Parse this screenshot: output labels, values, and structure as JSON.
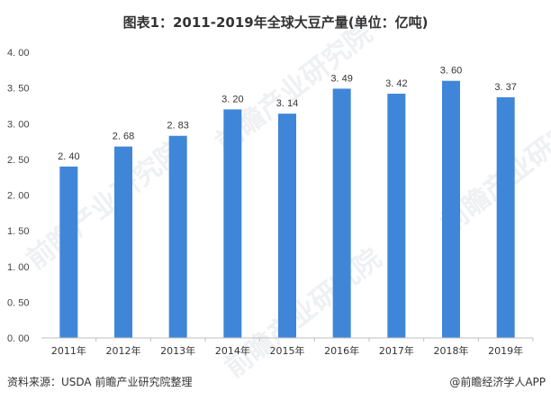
{
  "title": "图表1：2011-2019年全球大豆产量(单位：亿吨)",
  "source": "资料来源：USDA 前瞻产业研究院整理",
  "credit": "@前瞻经济学人APP",
  "watermark": "前瞻产业研究院",
  "colors": {
    "bar": "#3f86d8",
    "axis": "#bfbfbf",
    "text": "#333333"
  },
  "chart_data": {
    "type": "bar",
    "categories": [
      "2011年",
      "2012年",
      "2013年",
      "2014年",
      "2015年",
      "2016年",
      "2017年",
      "2018年",
      "2019年"
    ],
    "values": [
      2.4,
      2.68,
      2.83,
      3.2,
      3.14,
      3.49,
      3.42,
      3.6,
      3.37
    ],
    "value_labels": [
      "2. 40",
      "2. 68",
      "2. 83",
      "3. 20",
      "3. 14",
      "3. 49",
      "3. 42",
      "3. 60",
      "3. 37"
    ],
    "ylim": [
      0,
      4.0
    ],
    "yticks": [
      0,
      0.5,
      1.0,
      1.5,
      2.0,
      2.5,
      3.0,
      3.5,
      4.0
    ],
    "ytick_labels": [
      "0. 00",
      "0. 50",
      "1. 00",
      "1. 50",
      "2. 00",
      "2. 50",
      "3. 00",
      "3. 50",
      "4. 00"
    ],
    "grid": false,
    "legend": "none"
  }
}
